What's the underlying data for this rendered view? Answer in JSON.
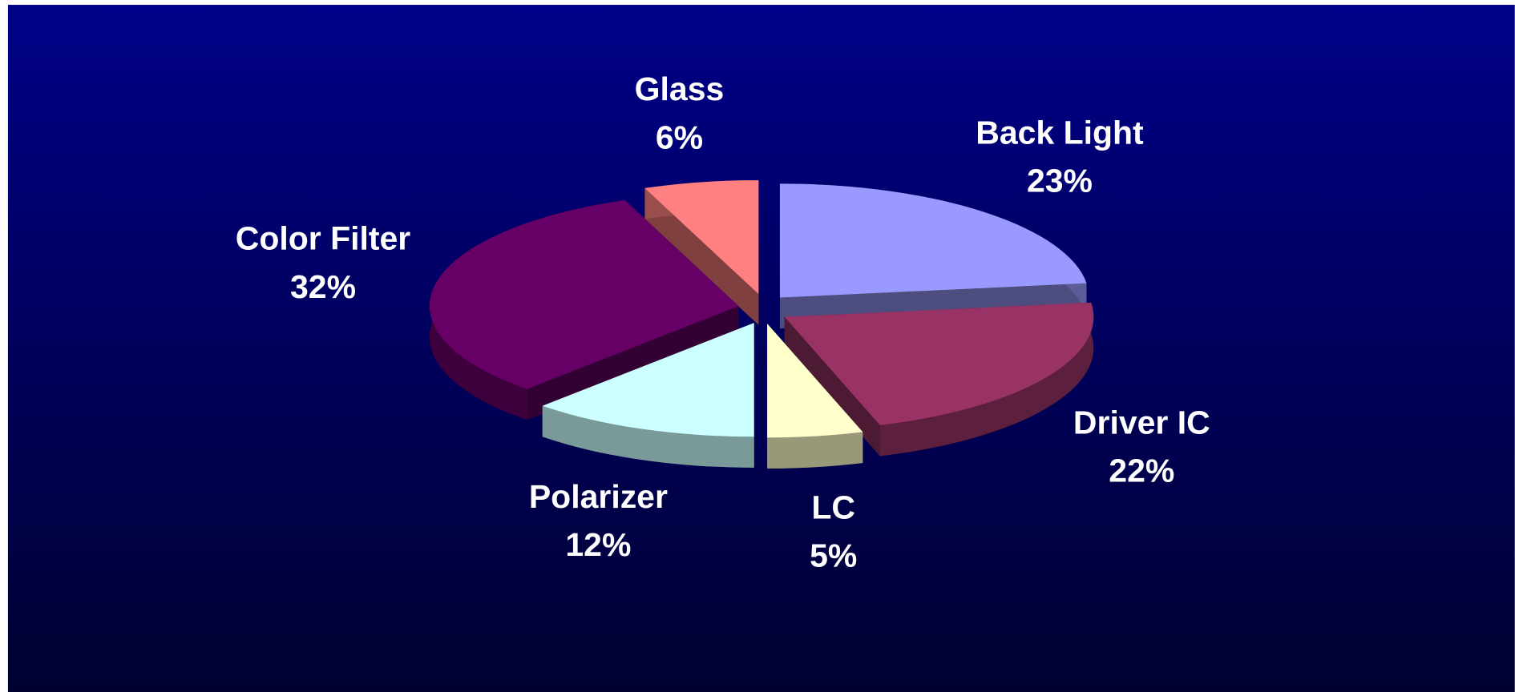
{
  "chart_data": {
    "type": "pie",
    "categories": [
      "Back Light",
      "Driver IC",
      "LC",
      "Polarizer",
      "Color Filter",
      "Glass"
    ],
    "values": [
      23,
      22,
      5,
      12,
      32,
      6
    ],
    "value_labels": [
      "23%",
      "22%",
      "5%",
      "12%",
      "32%",
      "6%"
    ],
    "colors": [
      "#9999ff",
      "#993366",
      "#ffffcc",
      "#ccffff",
      "#660066",
      "#ff8080"
    ]
  }
}
